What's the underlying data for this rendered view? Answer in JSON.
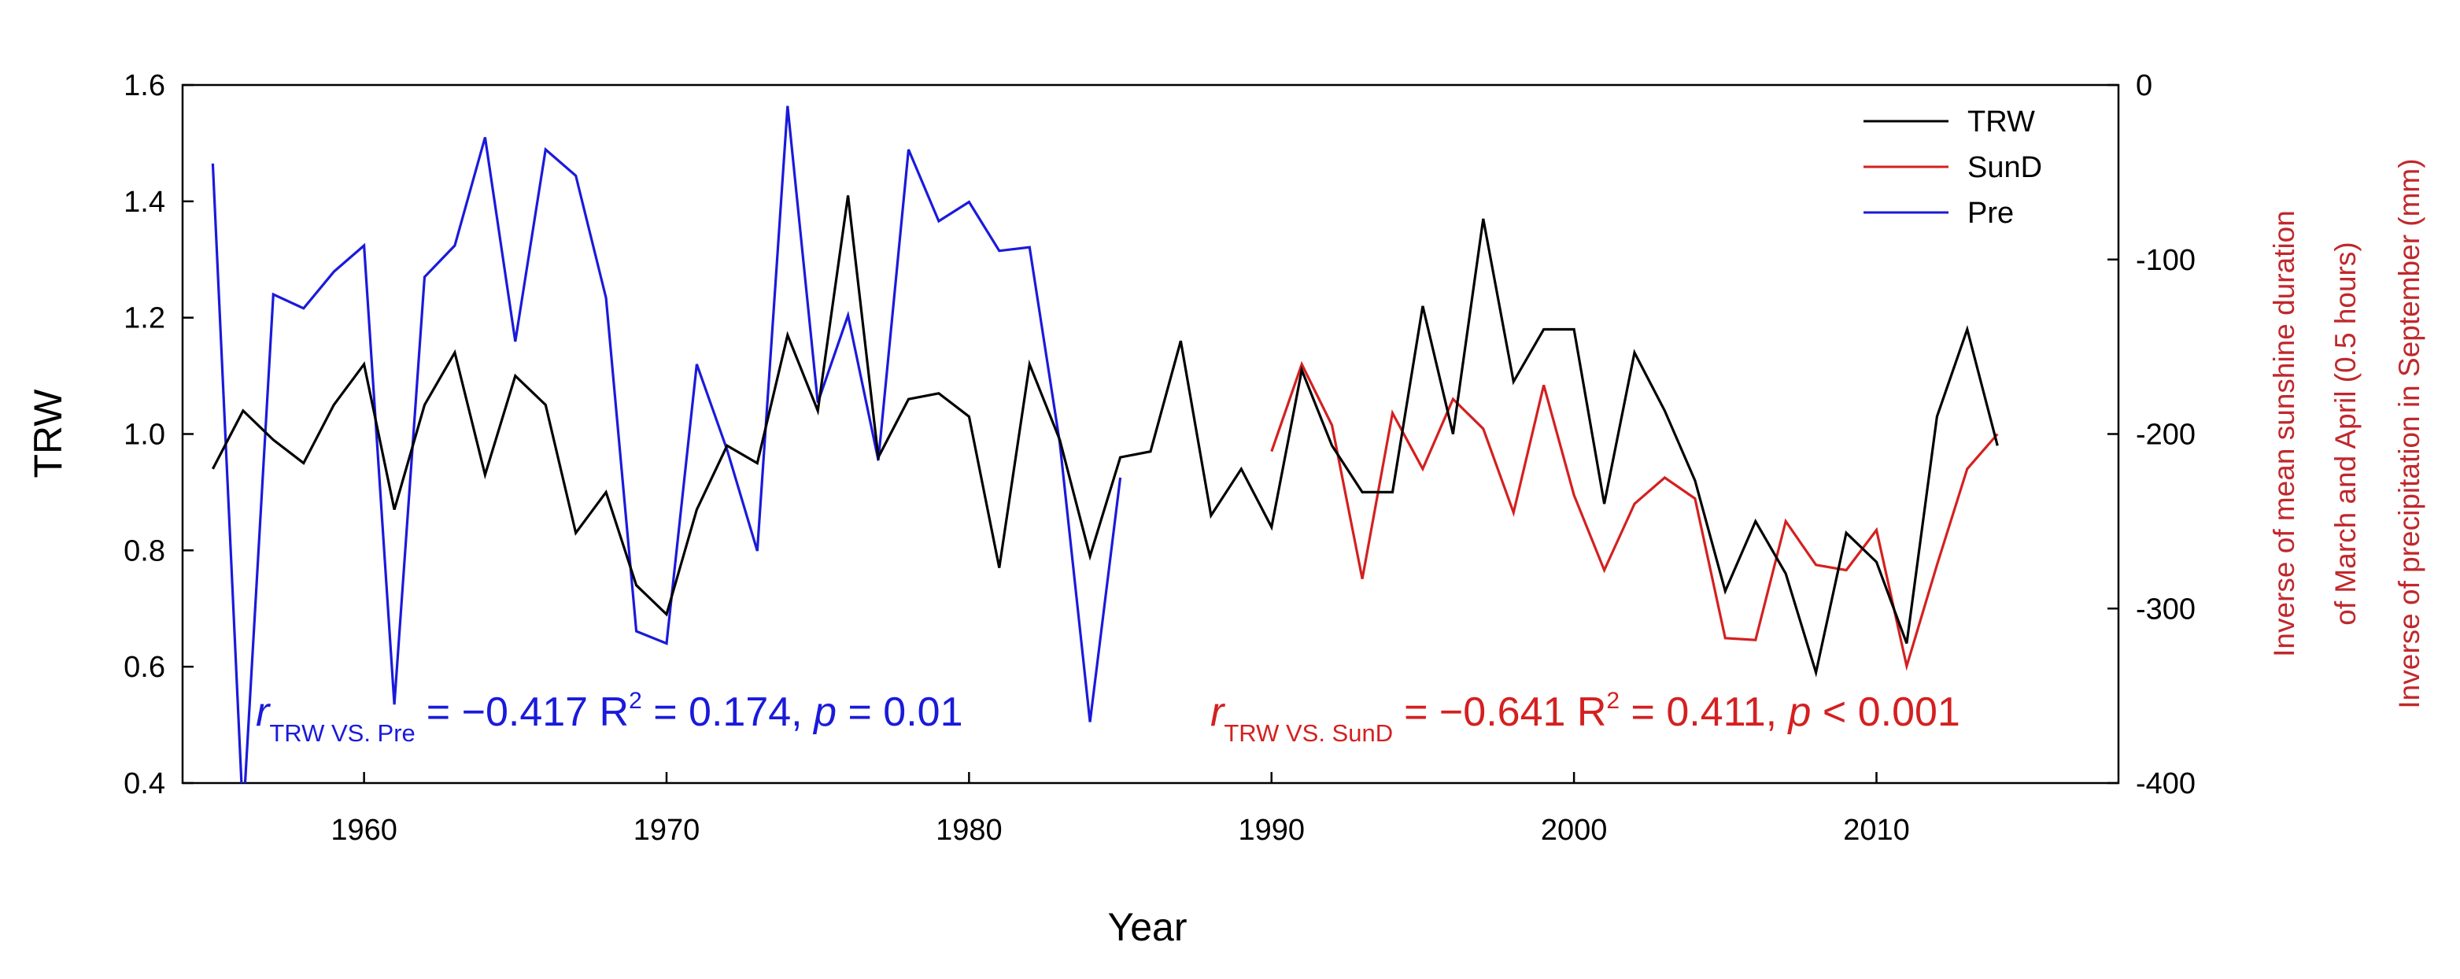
{
  "chart_data": {
    "type": "line",
    "xlabel": "Year",
    "ylabel": "TRW",
    "y2label": [
      "Inverse of mean sunshine duration",
      "of March and April (0.5 hours)",
      "Inverse of precipitation in September (mm)"
    ],
    "xlim": [
      1954,
      2018
    ],
    "ylim": [
      0.4,
      1.6
    ],
    "y2lim": [
      -400,
      0
    ],
    "x_ticks": [
      "1960",
      "1970",
      "1980",
      "1990",
      "2000",
      "2010"
    ],
    "y_ticks": [
      "0.4",
      "0.6",
      "0.8",
      "1.0",
      "1.2",
      "1.4",
      "1.6"
    ],
    "y2_ticks": [
      "-400",
      "-300",
      "-200",
      "-100",
      "0"
    ],
    "legend_position": "top-right",
    "colors": {
      "trw": "#000000",
      "sund": "#d42020",
      "pre": "#1a1adb"
    },
    "series": [
      {
        "name": "TRW",
        "axis": "left",
        "x": [
          1955,
          1956,
          1957,
          1958,
          1959,
          1960,
          1961,
          1962,
          1963,
          1964,
          1965,
          1966,
          1967,
          1968,
          1969,
          1970,
          1971,
          1972,
          1973,
          1974,
          1975,
          1976,
          1977,
          1978,
          1979,
          1980,
          1981,
          1982,
          1983,
          1984,
          1985,
          1986,
          1987,
          1988,
          1989,
          1990,
          1991,
          1992,
          1993,
          1994,
          1995,
          1996,
          1997,
          1998,
          1999,
          2000,
          2001,
          2002,
          2003,
          2004,
          2005,
          2006,
          2007,
          2008,
          2009,
          2010,
          2011,
          2012,
          2013,
          2014
        ],
        "values": [
          0.94,
          1.04,
          0.99,
          0.95,
          1.05,
          1.12,
          0.87,
          1.05,
          1.14,
          0.93,
          1.1,
          1.05,
          0.83,
          0.9,
          0.74,
          0.69,
          0.87,
          0.98,
          0.95,
          1.17,
          1.04,
          1.41,
          0.96,
          1.06,
          1.07,
          1.03,
          0.77,
          1.12,
          0.99,
          0.79,
          0.96,
          0.97,
          1.16,
          0.86,
          0.94,
          0.84,
          1.11,
          0.98,
          0.9,
          0.9,
          1.22,
          1.0,
          1.37,
          1.09,
          1.18,
          1.18,
          0.88,
          1.14,
          1.04,
          0.92,
          0.73,
          0.85,
          0.76,
          0.59,
          0.83,
          0.78,
          0.64,
          1.03,
          1.18,
          0.98
        ]
      },
      {
        "name": "SunD",
        "axis": "right",
        "x": [
          1990,
          1991,
          1992,
          1993,
          1994,
          1995,
          1996,
          1997,
          1998,
          1999,
          2000,
          2001,
          2002,
          2003,
          2004,
          2005,
          2006,
          2007,
          2008,
          2009,
          2010,
          2011,
          2012,
          2013,
          2014
        ],
        "values": [
          -210,
          -160,
          -195,
          -283,
          -188,
          -220,
          -180,
          -197,
          -245,
          -172,
          -235,
          -278,
          -240,
          -225,
          -237,
          -317,
          -318,
          -250,
          -275,
          -278,
          -255,
          -333,
          -275,
          -220,
          -200
        ]
      },
      {
        "name": "Pre",
        "axis": "right",
        "x": [
          1955,
          1956,
          1957,
          1958,
          1959,
          1960,
          1961,
          1962,
          1963,
          1964,
          1965,
          1966,
          1967,
          1968,
          1969,
          1970,
          1971,
          1972,
          1973,
          1974,
          1975,
          1976,
          1977,
          1978,
          1979,
          1980,
          1981,
          1982,
          1983,
          1984,
          1985
        ],
        "values": [
          -45,
          -420,
          -120,
          -128,
          -107,
          -92,
          -355,
          -110,
          -92,
          -30,
          -147,
          -37,
          -52,
          -122,
          -313,
          -320,
          -160,
          -209,
          -267,
          -12,
          -182,
          -132,
          -215,
          -37,
          -78,
          -67,
          -95,
          -93,
          -205,
          -365,
          -225
        ]
      }
    ],
    "annotations": [
      {
        "r_label": "r",
        "subscript": "TRW VS. Pre",
        "eq": "= −0.417 R",
        "sup": "2",
        "rest": " = 0.174, ",
        "p_label": "p",
        "p_value": " = 0.01",
        "color": "#1a1adb"
      },
      {
        "r_label": "r",
        "subscript": "TRW VS. SunD",
        "eq": "= −0.641 R",
        "sup": "2",
        "rest": " = 0.411, ",
        "p_label": "p",
        "p_value": " < 0.001",
        "color": "#d42020"
      }
    ]
  }
}
